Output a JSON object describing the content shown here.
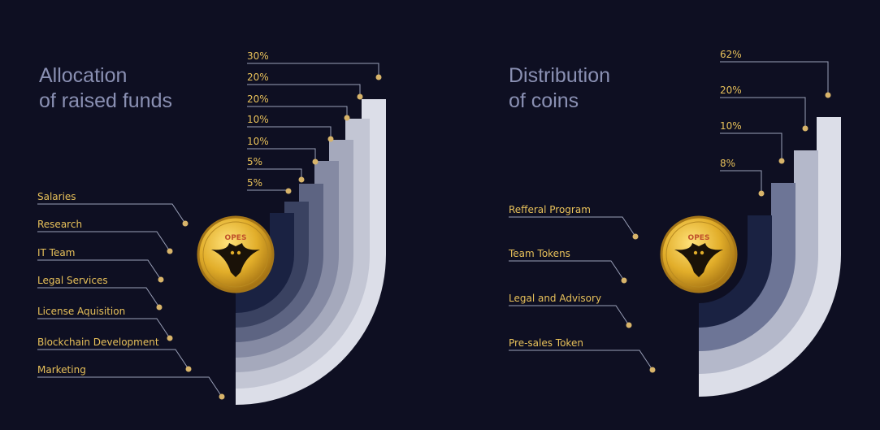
{
  "colors": {
    "background": "#0e0f22",
    "title": "#8a90b3",
    "percent_text": "#e8c15a",
    "label_text": "#e8c15a",
    "leader_line": "#9aa0b8",
    "dot": "#d8b46a",
    "coin_gold": "#e2ae2a"
  },
  "icons": [
    "owl-emblem-gold-coin-icon"
  ],
  "charts": [
    {
      "title_line1": "Allocation",
      "title_line2": "of raised funds",
      "coin_text": "OPES"
    },
    {
      "title_line1": "Distribution",
      "title_line2": "of coins",
      "coin_text": "OPES"
    }
  ],
  "chart_data": [
    {
      "type": "pie",
      "title": "Allocation of raised funds",
      "categories": [
        "Marketing",
        "Blockchain Development",
        "License Aquisition",
        "Legal Services",
        "IT Team",
        "Research",
        "Salaries"
      ],
      "values": [
        30,
        20,
        20,
        10,
        10,
        5,
        5
      ],
      "value_labels": [
        "30%",
        "20%",
        "20%",
        "10%",
        "10%",
        "5%",
        "5%"
      ],
      "band_colors": [
        "#dcdee8",
        "#c3c6d4",
        "#a5a9bc",
        "#858aa3",
        "#5d6482",
        "#3a4261",
        "#1a2242"
      ]
    },
    {
      "type": "pie",
      "title": "Distribution of coins",
      "categories": [
        "Pre-sales Token",
        "Legal and Advisory",
        "Team Tokens",
        "Refferal Program"
      ],
      "values": [
        62,
        20,
        10,
        8
      ],
      "value_labels": [
        "62%",
        "20%",
        "10%",
        "8%"
      ],
      "band_colors": [
        "#dcdee8",
        "#b4b8ca",
        "#6d7596",
        "#1a2242"
      ]
    }
  ]
}
